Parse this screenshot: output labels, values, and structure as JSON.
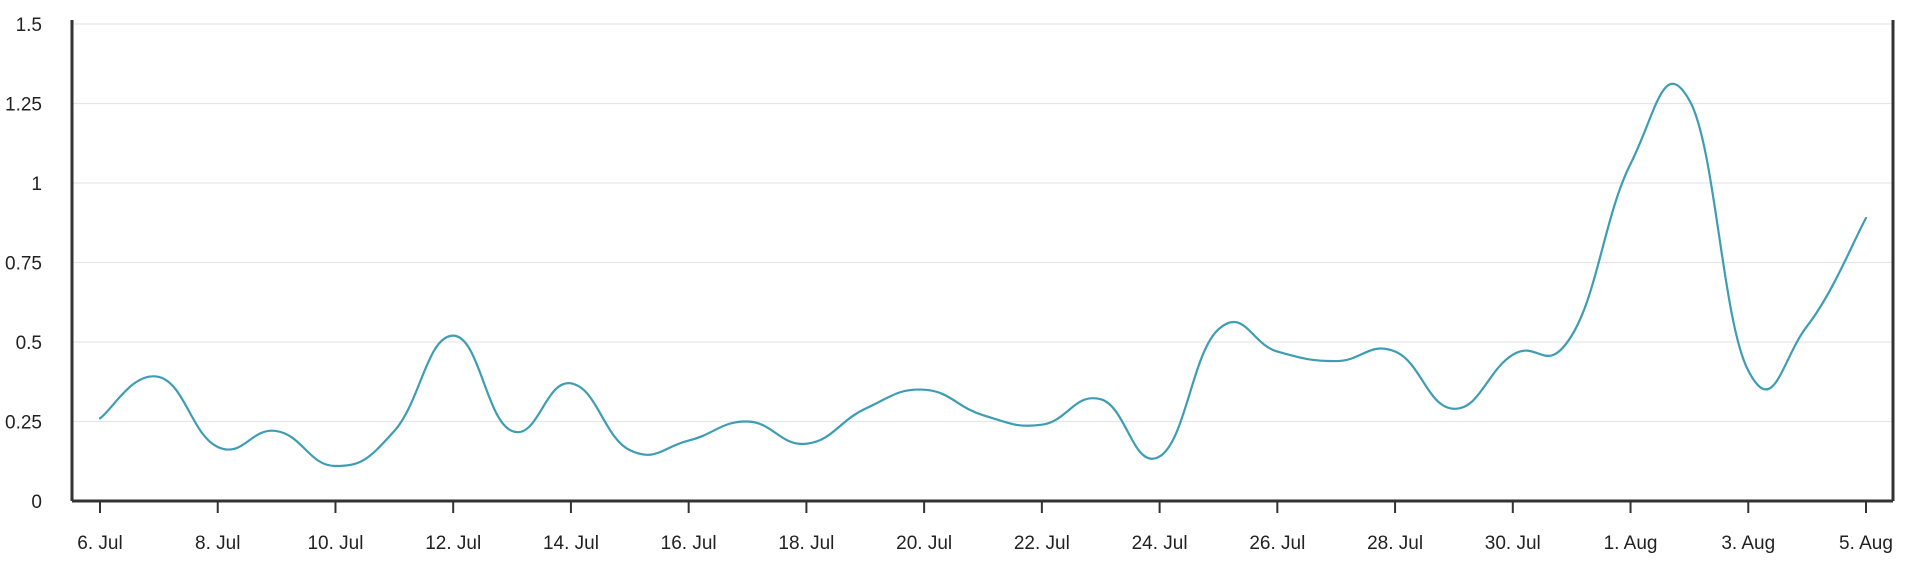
{
  "chart_data": {
    "type": "line",
    "title": "",
    "xlabel": "",
    "ylabel": "",
    "ylim": [
      0,
      1.5
    ],
    "yticks": [
      0,
      0.25,
      0.5,
      0.75,
      1,
      1.25,
      1.5
    ],
    "ytick_labels": [
      "0",
      "0.25",
      "0.5",
      "0.75",
      "1",
      "1.25",
      "1.5"
    ],
    "xtick_labels": [
      "6. Jul",
      "8. Jul",
      "10. Jul",
      "12. Jul",
      "14. Jul",
      "16. Jul",
      "18. Jul",
      "20. Jul",
      "22. Jul",
      "24. Jul",
      "26. Jul",
      "28. Jul",
      "30. Jul",
      "1. Aug",
      "3. Aug",
      "5. Aug"
    ],
    "grid": true,
    "legend": "none",
    "colors": {
      "series": "#3d9db3",
      "axis": "#333333",
      "grid": "#e6e6e6"
    },
    "categories": [
      "6. Jul",
      "7. Jul",
      "8. Jul",
      "9. Jul",
      "10. Jul",
      "11. Jul",
      "12. Jul",
      "13. Jul",
      "14. Jul",
      "15. Jul",
      "16. Jul",
      "17. Jul",
      "18. Jul",
      "19. Jul",
      "20. Jul",
      "21. Jul",
      "22. Jul",
      "23. Jul",
      "24. Jul",
      "25. Jul",
      "26. Jul",
      "27. Jul",
      "28. Jul",
      "29. Jul",
      "30. Jul",
      "31. Jul",
      "1. Aug",
      "2. Aug",
      "3. Aug",
      "4. Aug",
      "5. Aug"
    ],
    "series": [
      {
        "values": [
          0.26,
          0.39,
          0.17,
          0.22,
          0.11,
          0.22,
          0.52,
          0.22,
          0.37,
          0.16,
          0.19,
          0.25,
          0.18,
          0.29,
          0.35,
          0.27,
          0.24,
          0.32,
          0.14,
          0.54,
          0.47,
          0.44,
          0.47,
          0.29,
          0.46,
          0.52,
          1.06,
          1.26,
          0.41,
          0.55,
          0.89
        ]
      }
    ]
  }
}
